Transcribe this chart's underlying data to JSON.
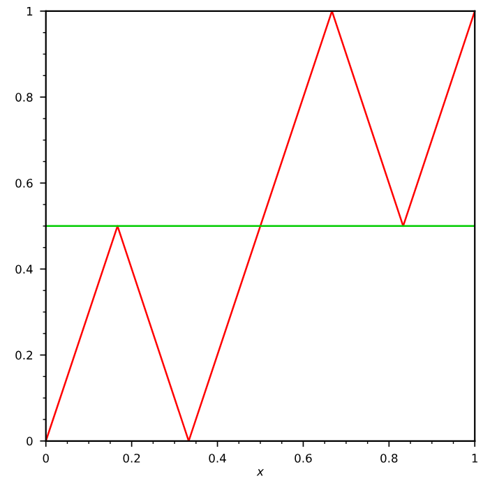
{
  "chart_data": {
    "type": "line",
    "xlabel": "x",
    "x": [
      0,
      0.167,
      0.333,
      0.667,
      0.833,
      1
    ],
    "series": [
      {
        "color": "#ff0000",
        "values": [
          0,
          0.5,
          0,
          1,
          0.5,
          1
        ]
      },
      {
        "color": "#00cc00",
        "x": [
          0,
          1
        ],
        "values": [
          0.5,
          0.5
        ]
      }
    ],
    "xlim": [
      0,
      1
    ],
    "ylim": [
      0,
      1
    ],
    "xticks": [
      0,
      0.2,
      0.4,
      0.6,
      0.8,
      1
    ],
    "yticks": [
      0,
      0.2,
      0.4,
      0.6,
      0.8,
      1
    ],
    "grid": false,
    "marker": "none",
    "line_style": "solid"
  }
}
